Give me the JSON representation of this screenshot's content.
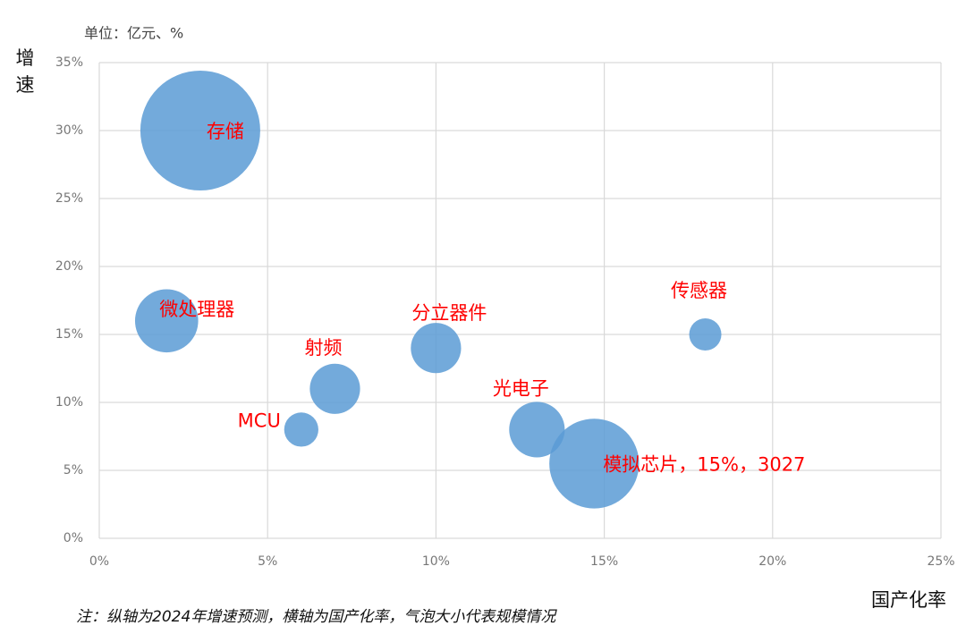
{
  "chart_data": {
    "type": "bubble",
    "subtitle": "单位：亿元、%",
    "y_label": "增速",
    "x_label": "国产化率",
    "note": "注：纵轴为2024年增速预测，横轴为国产化率，气泡大小代表规模情况",
    "color": "#5b9bd5",
    "label_color": "#ff0000",
    "grid": true,
    "xlim": [
      0,
      25
    ],
    "ylim": [
      0,
      35
    ],
    "xticks": [
      {
        "value": 0,
        "label": "0%"
      },
      {
        "value": 5,
        "label": "5%"
      },
      {
        "value": 10,
        "label": "10%"
      },
      {
        "value": 15,
        "label": "15%"
      },
      {
        "value": 20,
        "label": "20%"
      },
      {
        "value": 25,
        "label": "25%"
      }
    ],
    "yticks": [
      {
        "value": 0,
        "label": "0%"
      },
      {
        "value": 5,
        "label": "5%"
      },
      {
        "value": 10,
        "label": "10%"
      },
      {
        "value": 15,
        "label": "15%"
      },
      {
        "value": 20,
        "label": "20%"
      },
      {
        "value": 25,
        "label": "25%"
      },
      {
        "value": 30,
        "label": "30%"
      },
      {
        "value": 35,
        "label": "35%"
      }
    ],
    "labels": [
      "存储",
      "微处理器",
      "MCU",
      "射频",
      "分立器件",
      "光电子",
      "模拟芯片，15%，3027",
      "传感器"
    ],
    "x": [
      3,
      2,
      6,
      7,
      10,
      13,
      14.7,
      18
    ],
    "y": [
      30,
      16,
      8,
      11,
      14,
      8,
      5.5,
      15
    ],
    "sizes": [
      5400,
      1500,
      440,
      950,
      950,
      1160,
      3027,
      390
    ]
  }
}
